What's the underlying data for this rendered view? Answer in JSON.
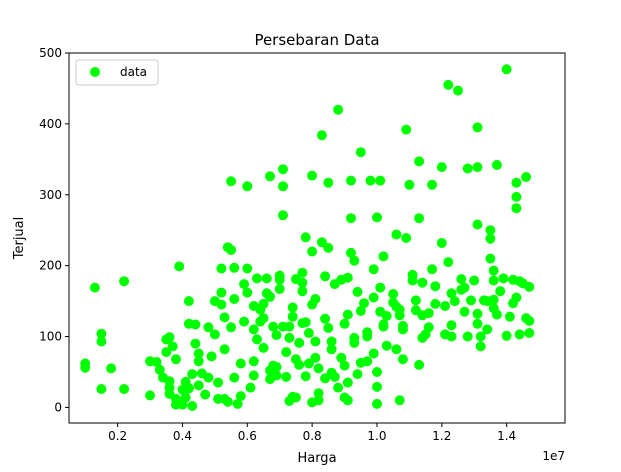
{
  "chart_data": {
    "type": "scatter",
    "title": "Persebaran Data",
    "xlabel": "Harga",
    "ylabel": "Terjual",
    "x_offset_label": "1e7",
    "xlim": [
      0.05,
      1.58
    ],
    "ylim": [
      -22,
      500
    ],
    "xticks": [
      0.2,
      0.4,
      0.6,
      0.8,
      1.0,
      1.2,
      1.4
    ],
    "xtick_labels": [
      "0.2",
      "0.4",
      "0.6",
      "0.8",
      "1.0",
      "1.2",
      "1.4"
    ],
    "yticks": [
      0,
      100,
      200,
      300,
      400,
      500
    ],
    "ytick_labels": [
      "0",
      "100",
      "200",
      "300",
      "400",
      "500"
    ],
    "grid": false,
    "legend_position": "top-left",
    "series": [
      {
        "name": "data",
        "color": "#00ff00",
        "x_scale": "1e7",
        "points": [
          [
            0.1,
            62
          ],
          [
            0.1,
            56
          ],
          [
            0.13,
            169
          ],
          [
            0.15,
            104
          ],
          [
            0.15,
            93
          ],
          [
            0.15,
            26
          ],
          [
            0.18,
            55
          ],
          [
            0.22,
            178
          ],
          [
            0.22,
            26
          ],
          [
            0.3,
            65
          ],
          [
            0.3,
            17
          ],
          [
            0.32,
            64
          ],
          [
            0.33,
            53
          ],
          [
            0.34,
            42
          ],
          [
            0.35,
            96
          ],
          [
            0.35,
            78
          ],
          [
            0.36,
            37
          ],
          [
            0.36,
            28
          ],
          [
            0.36,
            99
          ],
          [
            0.36,
            19
          ],
          [
            0.37,
            86
          ],
          [
            0.38,
            68
          ],
          [
            0.38,
            12
          ],
          [
            0.38,
            4
          ],
          [
            0.39,
            199
          ],
          [
            0.4,
            25
          ],
          [
            0.4,
            4
          ],
          [
            0.41,
            36
          ],
          [
            0.41,
            14
          ],
          [
            0.42,
            118
          ],
          [
            0.42,
            27
          ],
          [
            0.42,
            150
          ],
          [
            0.43,
            47
          ],
          [
            0.43,
            2
          ],
          [
            0.44,
            117
          ],
          [
            0.44,
            90
          ],
          [
            0.45,
            65
          ],
          [
            0.45,
            76
          ],
          [
            0.45,
            31
          ],
          [
            0.46,
            48
          ],
          [
            0.47,
            18
          ],
          [
            0.48,
            42
          ],
          [
            0.48,
            113
          ],
          [
            0.49,
            72
          ],
          [
            0.5,
            103
          ],
          [
            0.5,
            150
          ],
          [
            0.51,
            35
          ],
          [
            0.51,
            12
          ],
          [
            0.52,
            145
          ],
          [
            0.52,
            162
          ],
          [
            0.52,
            196
          ],
          [
            0.53,
            82
          ],
          [
            0.53,
            127
          ],
          [
            0.53,
            12
          ],
          [
            0.54,
            226
          ],
          [
            0.54,
            8
          ],
          [
            0.55,
            222
          ],
          [
            0.55,
            319
          ],
          [
            0.55,
            113
          ],
          [
            0.56,
            197
          ],
          [
            0.56,
            153
          ],
          [
            0.56,
            42
          ],
          [
            0.57,
            5
          ],
          [
            0.58,
            16
          ],
          [
            0.58,
            62
          ],
          [
            0.59,
            121
          ],
          [
            0.59,
            174
          ],
          [
            0.6,
            196
          ],
          [
            0.6,
            312
          ],
          [
            0.6,
            162
          ],
          [
            0.61,
            28
          ],
          [
            0.62,
            143
          ],
          [
            0.62,
            110
          ],
          [
            0.62,
            65
          ],
          [
            0.62,
            45
          ],
          [
            0.63,
            96
          ],
          [
            0.63,
            182
          ],
          [
            0.64,
            138
          ],
          [
            0.64,
            121
          ],
          [
            0.65,
            126
          ],
          [
            0.65,
            84
          ],
          [
            0.65,
            146
          ],
          [
            0.66,
            161
          ],
          [
            0.66,
            182
          ],
          [
            0.67,
            52
          ],
          [
            0.67,
            40
          ],
          [
            0.67,
            156
          ],
          [
            0.67,
            326
          ],
          [
            0.68,
            59
          ],
          [
            0.68,
            114
          ],
          [
            0.69,
            45
          ],
          [
            0.69,
            57
          ],
          [
            0.69,
            102
          ],
          [
            0.7,
            167
          ],
          [
            0.7,
            180
          ],
          [
            0.7,
            186
          ],
          [
            0.71,
            114
          ],
          [
            0.71,
            312
          ],
          [
            0.71,
            336
          ],
          [
            0.71,
            271
          ],
          [
            0.72,
            43
          ],
          [
            0.72,
            78
          ],
          [
            0.73,
            114
          ],
          [
            0.73,
            98
          ],
          [
            0.73,
            9
          ],
          [
            0.74,
            141
          ],
          [
            0.74,
            15
          ],
          [
            0.74,
            128
          ],
          [
            0.75,
            181
          ],
          [
            0.75,
            68
          ],
          [
            0.75,
            14
          ],
          [
            0.76,
            60
          ],
          [
            0.76,
            91
          ],
          [
            0.77,
            119
          ],
          [
            0.77,
            164
          ],
          [
            0.77,
            190
          ],
          [
            0.77,
            176
          ],
          [
            0.78,
            240
          ],
          [
            0.78,
            120
          ],
          [
            0.78,
            44
          ],
          [
            0.79,
            105
          ],
          [
            0.79,
            62
          ],
          [
            0.8,
            7
          ],
          [
            0.8,
            145
          ],
          [
            0.8,
            327
          ],
          [
            0.8,
            220
          ],
          [
            0.81,
            93
          ],
          [
            0.81,
            153
          ],
          [
            0.81,
            70
          ],
          [
            0.82,
            20
          ],
          [
            0.82,
            10
          ],
          [
            0.82,
            55
          ],
          [
            0.83,
            233
          ],
          [
            0.83,
            384
          ],
          [
            0.84,
            185
          ],
          [
            0.84,
            125
          ],
          [
            0.84,
            41
          ],
          [
            0.85,
            225
          ],
          [
            0.85,
            317
          ],
          [
            0.85,
            112
          ],
          [
            0.86,
            49
          ],
          [
            0.86,
            82
          ],
          [
            0.86,
            93
          ],
          [
            0.87,
            43
          ],
          [
            0.87,
            174
          ],
          [
            0.88,
            420
          ],
          [
            0.88,
            28
          ],
          [
            0.89,
            180
          ],
          [
            0.89,
            70
          ],
          [
            0.9,
            14
          ],
          [
            0.9,
            118
          ],
          [
            0.9,
            59
          ],
          [
            0.91,
            10
          ],
          [
            0.91,
            183
          ],
          [
            0.91,
            131
          ],
          [
            0.91,
            35
          ],
          [
            0.92,
            218
          ],
          [
            0.92,
            267
          ],
          [
            0.92,
            320
          ],
          [
            0.93,
            91
          ],
          [
            0.93,
            207
          ],
          [
            0.93,
            98
          ],
          [
            0.94,
            47
          ],
          [
            0.94,
            163
          ],
          [
            0.95,
            63
          ],
          [
            0.95,
            360
          ],
          [
            0.95,
            136
          ],
          [
            0.96,
            147
          ],
          [
            0.97,
            65
          ],
          [
            0.97,
            106
          ],
          [
            0.97,
            100
          ],
          [
            0.98,
            320
          ],
          [
            0.99,
            195
          ],
          [
            0.99,
            76
          ],
          [
            0.99,
            155
          ],
          [
            1.0,
            268
          ],
          [
            1.0,
            5
          ],
          [
            1.0,
            29
          ],
          [
            1.0,
            50
          ],
          [
            1.01,
            169
          ],
          [
            1.01,
            135
          ],
          [
            1.01,
            320
          ],
          [
            1.02,
            117
          ],
          [
            1.02,
            114
          ],
          [
            1.02,
            213
          ],
          [
            1.03,
            129
          ],
          [
            1.03,
            87
          ],
          [
            1.05,
            160
          ],
          [
            1.05,
            148
          ],
          [
            1.06,
            82
          ],
          [
            1.06,
            244
          ],
          [
            1.06,
            142
          ],
          [
            1.07,
            10
          ],
          [
            1.07,
            138
          ],
          [
            1.07,
            130
          ],
          [
            1.08,
            110
          ],
          [
            1.08,
            68
          ],
          [
            1.08,
            115
          ],
          [
            1.09,
            392
          ],
          [
            1.09,
            239
          ],
          [
            1.1,
            314
          ],
          [
            1.11,
            187
          ],
          [
            1.11,
            179
          ],
          [
            1.12,
            137
          ],
          [
            1.12,
            151
          ],
          [
            1.13,
            267
          ],
          [
            1.13,
            347
          ],
          [
            1.13,
            60
          ],
          [
            1.14,
            98
          ],
          [
            1.14,
            130
          ],
          [
            1.14,
            176
          ],
          [
            1.15,
            103
          ],
          [
            1.16,
            113
          ],
          [
            1.16,
            133
          ],
          [
            1.17,
            195
          ],
          [
            1.17,
            314
          ],
          [
            1.18,
            146
          ],
          [
            1.18,
            171
          ],
          [
            1.2,
            339
          ],
          [
            1.2,
            232
          ],
          [
            1.21,
            143
          ],
          [
            1.21,
            103
          ],
          [
            1.22,
            455
          ],
          [
            1.22,
            205
          ],
          [
            1.23,
            161
          ],
          [
            1.23,
            116
          ],
          [
            1.23,
            100
          ],
          [
            1.24,
            150
          ],
          [
            1.25,
            447
          ],
          [
            1.26,
            166
          ],
          [
            1.26,
            181
          ],
          [
            1.27,
            135
          ],
          [
            1.27,
            169
          ],
          [
            1.28,
            337
          ],
          [
            1.28,
            100
          ],
          [
            1.29,
            151
          ],
          [
            1.3,
            179
          ],
          [
            1.31,
            395
          ],
          [
            1.31,
            339
          ],
          [
            1.31,
            258
          ],
          [
            1.31,
            118
          ],
          [
            1.31,
            132
          ],
          [
            1.32,
            86
          ],
          [
            1.32,
            100
          ],
          [
            1.33,
            151
          ],
          [
            1.34,
            150
          ],
          [
            1.34,
            110
          ],
          [
            1.35,
            238
          ],
          [
            1.35,
            250
          ],
          [
            1.35,
            210
          ],
          [
            1.36,
            193
          ],
          [
            1.36,
            179
          ],
          [
            1.36,
            152
          ],
          [
            1.36,
            140
          ],
          [
            1.37,
            342
          ],
          [
            1.37,
            131
          ],
          [
            1.38,
            164
          ],
          [
            1.39,
            182
          ],
          [
            1.4,
            477
          ],
          [
            1.4,
            101
          ],
          [
            1.41,
            128
          ],
          [
            1.42,
            147
          ],
          [
            1.42,
            180
          ],
          [
            1.43,
            155
          ],
          [
            1.43,
            297
          ],
          [
            1.43,
            281
          ],
          [
            1.43,
            317
          ],
          [
            1.44,
            103
          ],
          [
            1.44,
            178
          ],
          [
            1.45,
            175
          ],
          [
            1.46,
            126
          ],
          [
            1.46,
            325
          ],
          [
            1.47,
            105
          ],
          [
            1.47,
            122
          ],
          [
            1.47,
            170
          ]
        ]
      }
    ]
  }
}
